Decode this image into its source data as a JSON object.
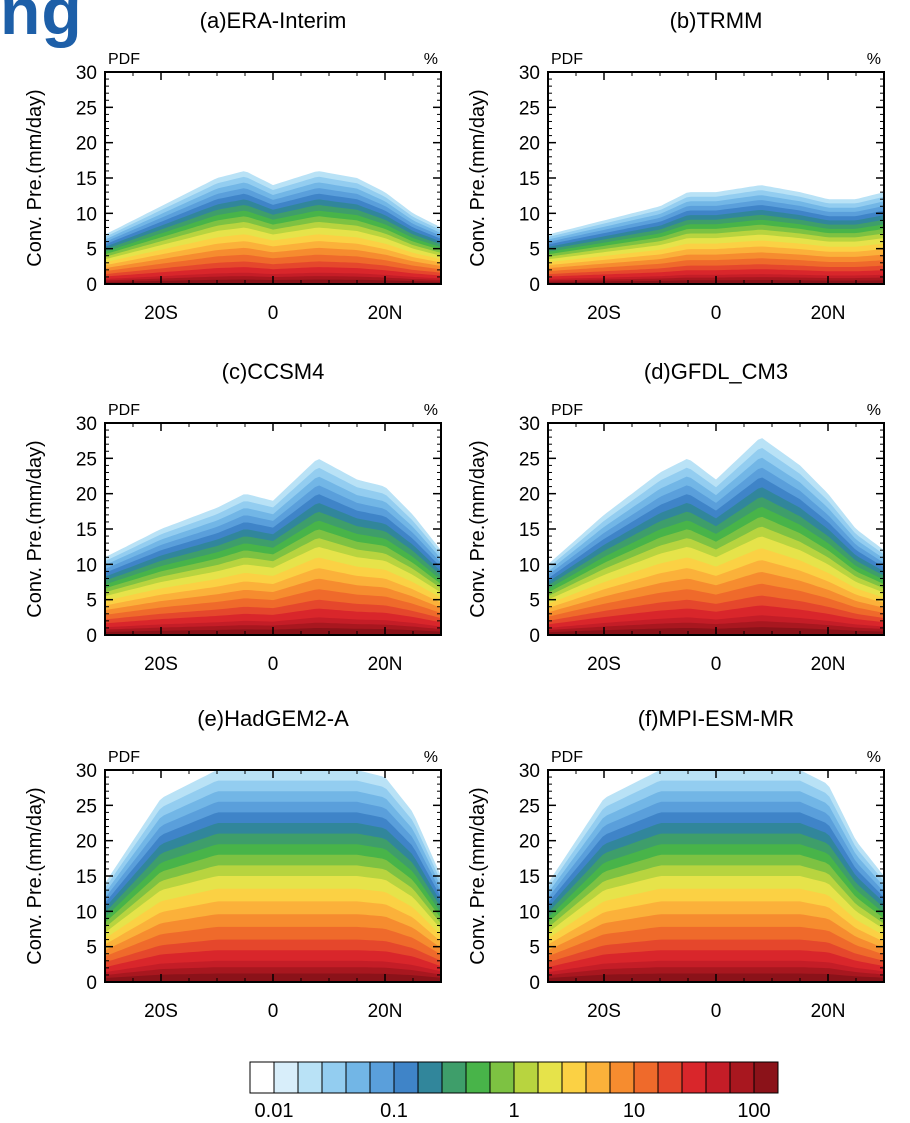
{
  "header_fragment": "ng",
  "chart_data": [
    {
      "type": "heatmap",
      "panel": "a",
      "title": "(a)ERA-Interim",
      "ylabel": "Conv. Pre.(mm/day)",
      "corner_left": "PDF",
      "corner_right": "%",
      "x_ticks": [
        "20S",
        "0",
        "20N"
      ],
      "y_ticks": [
        "0",
        "5",
        "10",
        "15",
        "20",
        "25",
        "30"
      ],
      "xlim": [
        -30,
        30
      ],
      "ylim": [
        0,
        30
      ],
      "envelope_top_mm_day": {
        "x": [
          -30,
          -20,
          -10,
          -5,
          0,
          8,
          15,
          20,
          25,
          30
        ],
        "y": [
          7,
          11,
          15,
          16,
          14,
          16,
          15,
          13,
          10,
          8
        ]
      }
    },
    {
      "type": "heatmap",
      "panel": "b",
      "title": "(b)TRMM",
      "ylabel": "Conv. Pre.(mm/day)",
      "corner_left": "PDF",
      "corner_right": "%",
      "x_ticks": [
        "20S",
        "0",
        "20N"
      ],
      "y_ticks": [
        "0",
        "5",
        "10",
        "15",
        "20",
        "25",
        "30"
      ],
      "xlim": [
        -30,
        30
      ],
      "ylim": [
        0,
        30
      ],
      "envelope_top_mm_day": {
        "x": [
          -30,
          -20,
          -10,
          -5,
          0,
          8,
          15,
          20,
          25,
          30
        ],
        "y": [
          7,
          9,
          11,
          13,
          13,
          14,
          13,
          12,
          12,
          13
        ]
      }
    },
    {
      "type": "heatmap",
      "panel": "c",
      "title": "(c)CCSM4",
      "ylabel": "Conv. Pre.(mm/day)",
      "corner_left": "PDF",
      "corner_right": "%",
      "x_ticks": [
        "20S",
        "0",
        "20N"
      ],
      "y_ticks": [
        "0",
        "5",
        "10",
        "15",
        "20",
        "25",
        "30"
      ],
      "xlim": [
        -30,
        30
      ],
      "ylim": [
        0,
        30
      ],
      "envelope_top_mm_day": {
        "x": [
          -30,
          -20,
          -10,
          -5,
          0,
          8,
          15,
          20,
          25,
          30
        ],
        "y": [
          11,
          15,
          18,
          20,
          19,
          25,
          22,
          21,
          17,
          12
        ]
      }
    },
    {
      "type": "heatmap",
      "panel": "d",
      "title": "(d)GFDL_CM3",
      "ylabel": "Conv. Pre.(mm/day)",
      "corner_left": "PDF",
      "corner_right": "%",
      "x_ticks": [
        "20S",
        "0",
        "20N"
      ],
      "y_ticks": [
        "0",
        "5",
        "10",
        "15",
        "20",
        "25",
        "30"
      ],
      "xlim": [
        -30,
        30
      ],
      "ylim": [
        0,
        30
      ],
      "envelope_top_mm_day": {
        "x": [
          -30,
          -20,
          -10,
          -5,
          0,
          8,
          15,
          20,
          25,
          30
        ],
        "y": [
          10,
          17,
          23,
          25,
          22,
          28,
          24,
          20,
          15,
          12
        ]
      }
    },
    {
      "type": "heatmap",
      "panel": "e",
      "title": "(e)HadGEM2-A",
      "ylabel": "Conv. Pre.(mm/day)",
      "corner_left": "PDF",
      "corner_right": "%",
      "x_ticks": [
        "20S",
        "0",
        "20N"
      ],
      "y_ticks": [
        "0",
        "5",
        "10",
        "15",
        "20",
        "25",
        "30"
      ],
      "xlim": [
        -30,
        30
      ],
      "ylim": [
        0,
        30
      ],
      "envelope_top_mm_day": {
        "x": [
          -30,
          -20,
          -10,
          -5,
          0,
          8,
          15,
          20,
          25,
          30
        ],
        "y": [
          14,
          26,
          30,
          30,
          30,
          30,
          30,
          29,
          24,
          15
        ]
      }
    },
    {
      "type": "heatmap",
      "panel": "f",
      "title": "(f)MPI-ESM-MR",
      "ylabel": "Conv. Pre.(mm/day)",
      "corner_left": "PDF",
      "corner_right": "%",
      "x_ticks": [
        "20S",
        "0",
        "20N"
      ],
      "y_ticks": [
        "0",
        "5",
        "10",
        "15",
        "20",
        "25",
        "30"
      ],
      "xlim": [
        -30,
        30
      ],
      "ylim": [
        0,
        30
      ],
      "envelope_top_mm_day": {
        "x": [
          -30,
          -20,
          -10,
          -5,
          0,
          8,
          15,
          20,
          25,
          30
        ],
        "y": [
          14,
          26,
          30,
          30,
          30,
          30,
          30,
          28,
          20,
          15
        ]
      }
    }
  ],
  "colorbar": {
    "labels": [
      "0.01",
      "0.1",
      "1",
      "10",
      "100"
    ],
    "colors": [
      "#ffffff",
      "#d8eefa",
      "#b9e2f6",
      "#93cdf0",
      "#72b6e6",
      "#5a9fdb",
      "#3f84c8",
      "#31869b",
      "#3e9e6a",
      "#48b449",
      "#7dc242",
      "#b8d43f",
      "#e6e34a",
      "#fbd144",
      "#fbb13a",
      "#f68c2f",
      "#ef6a2b",
      "#e5472c",
      "#d9262b",
      "#c41d27",
      "#a8171f",
      "#8b1219"
    ]
  }
}
